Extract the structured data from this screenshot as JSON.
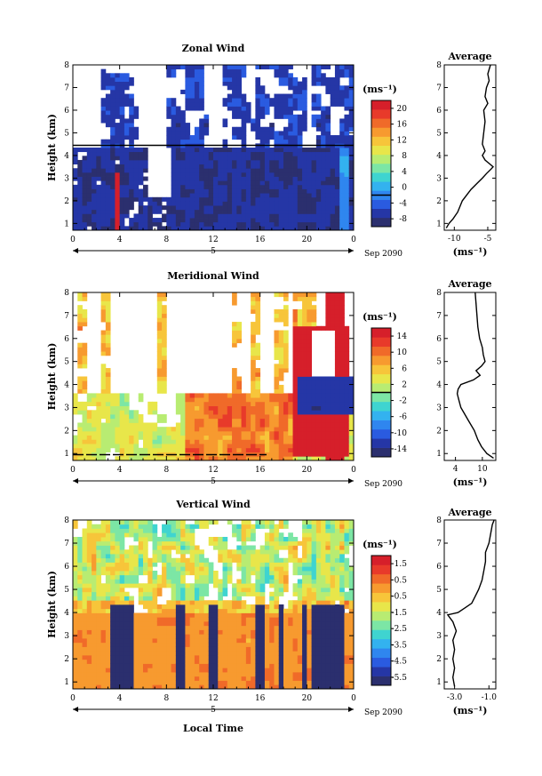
{
  "figure": {
    "xlabel": "Local Time",
    "ylabel": "Height (km)",
    "date_label": "Sep 2090",
    "day_label": "5",
    "unit_label": "(ms⁻¹)",
    "average_title": "Average",
    "colors": [
      "#2b2f6e",
      "#2536a6",
      "#2a5be0",
      "#2f86ef",
      "#33b2ef",
      "#3fd4d0",
      "#7ce6a5",
      "#b8ec72",
      "#e8e64a",
      "#f7c53a",
      "#f79a2f",
      "#f06a29",
      "#e83a2a",
      "#d61f2a"
    ]
  },
  "chart_data": [
    {
      "type": "heatmap",
      "title": "Zonal Wind",
      "xlabel": "Local Time",
      "ylabel": "Height (km)",
      "x_ticks": [
        "0",
        "4",
        "8",
        "12",
        "16",
        "20",
        "0"
      ],
      "y_ticks": [
        "1",
        "2",
        "3",
        "4",
        "5",
        "6",
        "7",
        "8"
      ],
      "xlim": [
        0,
        24
      ],
      "ylim": [
        0.7,
        8
      ],
      "colorbar": {
        "ticks": [
          "20",
          "16",
          "12",
          "8",
          "4",
          "0",
          "-4",
          "-8"
        ],
        "range": [
          -9,
          22
        ],
        "zero_line": 0
      },
      "profile": {
        "title": "Average",
        "xlabel": "(ms⁻¹)",
        "x_ticks": [
          "-10",
          "-5"
        ],
        "xlim": [
          -11.5,
          -3.8
        ],
        "heights": [
          0.8,
          1.0,
          1.2,
          1.5,
          2.0,
          2.5,
          2.8,
          3.0,
          3.2,
          3.4,
          3.5,
          3.6,
          3.8,
          4.0,
          4.2,
          4.5,
          5.0,
          5.5,
          6.0,
          6.3,
          6.6,
          7.0,
          7.3,
          7.6,
          8.0
        ],
        "values": [
          -11.2,
          -10.8,
          -10.2,
          -9.5,
          -8.8,
          -7.5,
          -6.5,
          -5.8,
          -5.2,
          -4.5,
          -4.2,
          -4.6,
          -5.4,
          -5.8,
          -5.4,
          -5.8,
          -5.6,
          -5.4,
          -5.6,
          -5.0,
          -5.4,
          -5.2,
          -4.8,
          -5.0,
          -4.6
        ]
      },
      "model": {
        "kind": "zonal",
        "bands": [
          3.6,
          4.2,
          9.3,
          10.1,
          13.8,
          16.6,
          18.8,
          21.6,
          23.1
        ],
        "gap_top": 4.4,
        "grid": [
          60,
          40
        ]
      }
    },
    {
      "type": "heatmap",
      "title": "Meridional Wind",
      "xlabel": "Local Time",
      "ylabel": "Height (km)",
      "x_ticks": [
        "0",
        "4",
        "8",
        "12",
        "16",
        "20",
        "0"
      ],
      "y_ticks": [
        "1",
        "2",
        "3",
        "4",
        "5",
        "6",
        "7",
        "8"
      ],
      "xlim": [
        0,
        24
      ],
      "ylim": [
        0.7,
        8
      ],
      "colorbar": {
        "ticks": [
          "14",
          "10",
          "6",
          "2",
          "-2",
          "-6",
          "-10",
          "-14"
        ],
        "range": [
          -16,
          16
        ],
        "zero_line": 2
      },
      "profile": {
        "title": "Average",
        "xlabel": "(ms⁻¹)",
        "x_ticks": [
          "4",
          "10"
        ],
        "xlim": [
          1.5,
          13
        ],
        "heights": [
          0.8,
          1.0,
          1.3,
          1.6,
          2.0,
          2.4,
          2.8,
          3.0,
          3.3,
          3.6,
          3.8,
          4.0,
          4.2,
          4.4,
          4.6,
          4.8,
          5.0,
          5.3,
          5.6,
          6.0,
          6.5,
          7.0,
          7.5,
          8.0
        ],
        "values": [
          12.5,
          11.0,
          9.8,
          9.0,
          8.2,
          7.0,
          5.8,
          5.2,
          4.8,
          4.4,
          4.6,
          5.2,
          8.0,
          9.5,
          8.6,
          9.8,
          10.6,
          10.2,
          10.0,
          9.4,
          9.0,
          8.8,
          8.6,
          8.4
        ]
      },
      "model": {
        "kind": "meridional",
        "grid": [
          60,
          40
        ]
      }
    },
    {
      "type": "heatmap",
      "title": "Vertical Wind",
      "xlabel": "Local Time",
      "ylabel": "Height (km)",
      "x_ticks": [
        "0",
        "4",
        "8",
        "12",
        "16",
        "20",
        "0"
      ],
      "y_ticks": [
        "1",
        "2",
        "3",
        "4",
        "5",
        "6",
        "7",
        "8"
      ],
      "xlim": [
        0,
        24
      ],
      "ylim": [
        0.7,
        8
      ],
      "colorbar": {
        "ticks": [
          "1.5",
          "0.5",
          "-0.5",
          "-1.5",
          "-2.5",
          "-3.5",
          "-4.5",
          "-5.5"
        ],
        "range": [
          -6,
          2
        ],
        "zero_line": null
      },
      "profile": {
        "title": "Average",
        "xlabel": "(ms⁻¹)",
        "x_ticks": [
          "-3.0",
          "-1.0"
        ],
        "xlim": [
          -3.6,
          -0.6
        ],
        "heights": [
          0.8,
          1.2,
          1.6,
          2.0,
          2.4,
          2.8,
          3.2,
          3.6,
          3.9,
          4.0,
          4.2,
          4.4,
          4.7,
          5.0,
          5.4,
          5.8,
          6.2,
          6.6,
          7.0,
          7.4,
          7.8,
          8.0
        ],
        "values": [
          -3.0,
          -3.1,
          -3.0,
          -3.1,
          -3.0,
          -3.1,
          -2.9,
          -3.1,
          -3.4,
          -2.8,
          -2.4,
          -2.0,
          -1.8,
          -1.6,
          -1.4,
          -1.3,
          -1.2,
          -1.2,
          -1.0,
          -0.9,
          -0.8,
          -0.7
        ]
      },
      "model": {
        "kind": "vertical",
        "bands": [
          [
            3.3,
            5.3
          ],
          [
            8.7,
            9.6
          ],
          [
            11.4,
            12.3
          ],
          [
            15.7,
            16.4
          ],
          [
            17.4,
            17.9
          ],
          [
            19.6,
            20.0
          ],
          [
            20.2,
            23.1
          ]
        ],
        "grid": [
          60,
          40
        ]
      }
    }
  ]
}
